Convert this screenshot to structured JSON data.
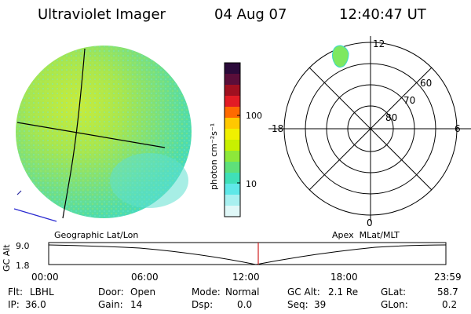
{
  "header": {
    "title": "Ultraviolet Imager",
    "date": "04 Aug 07",
    "time": "12:40:47 UT"
  },
  "colorbar": {
    "unit": "photon cm⁻²s⁻¹",
    "ticks": [
      "100",
      "10"
    ],
    "colors": [
      "#2b0a3a",
      "#5a0e3a",
      "#a01020",
      "#e21c25",
      "#ff6a00",
      "#ffc800",
      "#f0f000",
      "#c8f000",
      "#8de83a",
      "#5ee07a",
      "#3fe0b8",
      "#5fe8e8",
      "#a8f0f0",
      "#e0f8f8"
    ]
  },
  "polar": {
    "mlt_labels": {
      "top": "12",
      "left": "18",
      "right": "6",
      "bottom": "0"
    },
    "lat_labels": [
      "60",
      "70",
      "80"
    ]
  },
  "timeline": {
    "y_axis_label": "GC Alt",
    "y_ticks": [
      "9.0",
      "1.8"
    ],
    "left_caption": "Geographic Lat/Lon",
    "right_caption": "Apex  MLat/MLT",
    "x_ticks": [
      "00:00",
      "06:00",
      "12:00",
      "18:00",
      "23:59"
    ],
    "marker_color": "#d02020"
  },
  "status": {
    "col1": {
      "flt_label": "Flt:",
      "flt_value": "LBHL",
      "ip_label": "IP:",
      "ip_value": "36.0"
    },
    "col2": {
      "door_label": "Door:",
      "door_value": "Open",
      "gain_label": "Gain:",
      "gain_value": "14"
    },
    "col3": {
      "mode_label": "Mode:",
      "mode_value": "Normal",
      "dsp_label": "Dsp:",
      "dsp_value": "0.0"
    },
    "col4": {
      "gcalt_label": "GC Alt:",
      "gcalt_value": "2.1 Re",
      "seq_label": "Seq:",
      "seq_value": "39"
    },
    "col5": {
      "glat_label": "GLat:",
      "glat_value": "58.7",
      "glon_label": "GLon:",
      "glon_value": "0.2"
    }
  }
}
